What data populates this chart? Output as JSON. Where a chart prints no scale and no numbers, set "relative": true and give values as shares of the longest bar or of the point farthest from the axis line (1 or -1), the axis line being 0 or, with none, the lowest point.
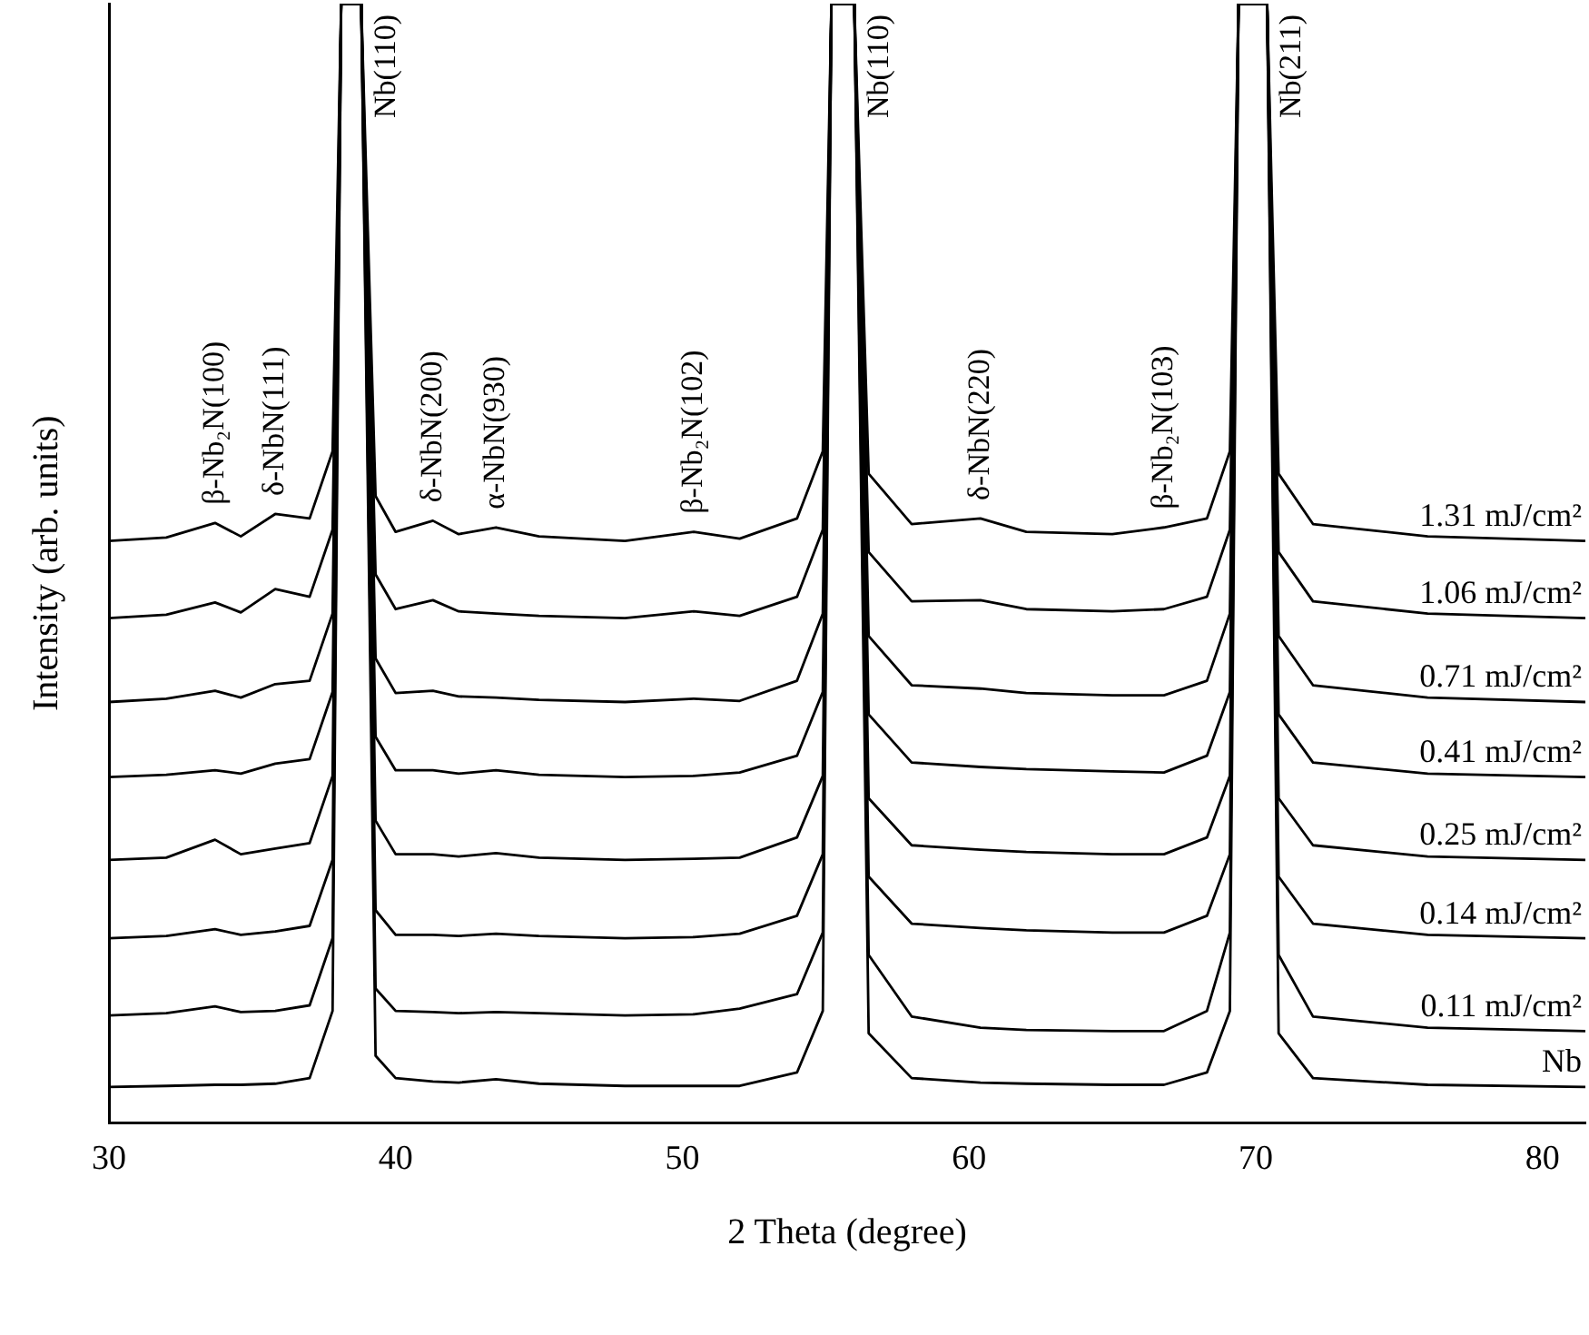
{
  "chart_data": {
    "type": "line",
    "relative": true,
    "xlabel": "2 Theta (degree)",
    "ylabel": "Intensity (arb. units)",
    "xlim": [
      30,
      81.5
    ],
    "xticks": [
      30,
      40,
      50,
      60,
      70,
      80
    ],
    "grid": false,
    "legend": false,
    "marker": "none",
    "line_style": "solid",
    "x": [
      30,
      32,
      33.7,
      34.6,
      35.8,
      37,
      37.8,
      38.1,
      38.8,
      39.3,
      40,
      41.3,
      42.2,
      43.5,
      45,
      48,
      50.4,
      52,
      54,
      54.9,
      55.2,
      56,
      56.5,
      58,
      60.4,
      62,
      65,
      66.8,
      68.3,
      69.1,
      69.4,
      70.4,
      70.8,
      72,
      76,
      81.5
    ],
    "series": [
      {
        "name": "1.31 mJ/cm²",
        "color": "#000000",
        "values": [
          0.52,
          0.523,
          0.536,
          0.524,
          0.544,
          0.54,
          0.6,
          1,
          1,
          0.56,
          0.528,
          0.538,
          0.526,
          0.532,
          0.524,
          0.52,
          0.528,
          0.522,
          0.54,
          0.6,
          1,
          1,
          0.58,
          0.535,
          0.54,
          0.528,
          0.526,
          0.532,
          0.54,
          0.6,
          1,
          1,
          0.58,
          0.535,
          0.524,
          0.52
        ]
      },
      {
        "name": "1.06 mJ/cm²",
        "color": "#000000",
        "values": [
          0.451,
          0.454,
          0.465,
          0.456,
          0.477,
          0.47,
          0.53,
          1,
          1,
          0.49,
          0.459,
          0.467,
          0.457,
          0.455,
          0.453,
          0.451,
          0.457,
          0.453,
          0.47,
          0.53,
          1,
          1,
          0.51,
          0.466,
          0.467,
          0.459,
          0.457,
          0.459,
          0.47,
          0.53,
          1,
          1,
          0.51,
          0.466,
          0.455,
          0.451
        ]
      },
      {
        "name": "0.71 mJ/cm²",
        "color": "#000000",
        "values": [
          0.376,
          0.379,
          0.386,
          0.38,
          0.392,
          0.395,
          0.455,
          1,
          1,
          0.415,
          0.384,
          0.386,
          0.381,
          0.38,
          0.378,
          0.376,
          0.379,
          0.377,
          0.395,
          0.455,
          1,
          1,
          0.435,
          0.391,
          0.388,
          0.384,
          0.382,
          0.382,
          0.395,
          0.455,
          1,
          1,
          0.435,
          0.391,
          0.38,
          0.376
        ]
      },
      {
        "name": "0.41 mJ/cm²",
        "color": "#000000",
        "values": [
          0.309,
          0.311,
          0.315,
          0.312,
          0.321,
          0.325,
          0.385,
          1,
          1,
          0.345,
          0.315,
          0.315,
          0.312,
          0.315,
          0.311,
          0.309,
          0.31,
          0.313,
          0.328,
          0.385,
          1,
          1,
          0.365,
          0.322,
          0.318,
          0.316,
          0.314,
          0.313,
          0.328,
          0.385,
          1,
          1,
          0.365,
          0.322,
          0.312,
          0.309
        ]
      },
      {
        "name": "0.25 mJ/cm²",
        "color": "#000000",
        "values": [
          0.235,
          0.237,
          0.253,
          0.24,
          0.245,
          0.25,
          0.31,
          1,
          1,
          0.27,
          0.24,
          0.24,
          0.238,
          0.241,
          0.237,
          0.235,
          0.236,
          0.237,
          0.255,
          0.31,
          1,
          1,
          0.29,
          0.248,
          0.244,
          0.242,
          0.24,
          0.24,
          0.255,
          0.31,
          1,
          1,
          0.29,
          0.248,
          0.238,
          0.235
        ]
      },
      {
        "name": "0.14 mJ/cm²",
        "color": "#000000",
        "values": [
          0.165,
          0.167,
          0.173,
          0.168,
          0.171,
          0.176,
          0.235,
          1,
          1,
          0.19,
          0.168,
          0.168,
          0.167,
          0.169,
          0.167,
          0.165,
          0.166,
          0.169,
          0.185,
          0.24,
          1,
          1,
          0.22,
          0.178,
          0.174,
          0.172,
          0.17,
          0.17,
          0.185,
          0.24,
          1,
          1,
          0.22,
          0.178,
          0.168,
          0.165
        ]
      },
      {
        "name": "0.11 mJ/cm²",
        "color": "#000000",
        "values": [
          0.096,
          0.098,
          0.104,
          0.099,
          0.1,
          0.105,
          0.165,
          1,
          1,
          0.12,
          0.1,
          0.099,
          0.098,
          0.099,
          0.098,
          0.096,
          0.097,
          0.102,
          0.115,
          0.17,
          1,
          1,
          0.15,
          0.095,
          0.085,
          0.083,
          0.082,
          0.082,
          0.1,
          0.17,
          1,
          1,
          0.15,
          0.095,
          0.085,
          0.082
        ]
      },
      {
        "name": "Nb",
        "color": "#000000",
        "values": [
          0.032,
          0.033,
          0.034,
          0.034,
          0.035,
          0.04,
          0.1,
          1,
          1,
          0.06,
          0.04,
          0.037,
          0.036,
          0.039,
          0.035,
          0.033,
          0.033,
          0.033,
          0.045,
          0.1,
          1,
          1,
          0.08,
          0.04,
          0.036,
          0.035,
          0.034,
          0.034,
          0.045,
          0.1,
          1,
          1,
          0.08,
          0.04,
          0.034,
          0.032
        ]
      }
    ],
    "annotations": [
      {
        "text": "β-Nb₂N(100)",
        "x": 33.7,
        "y": 0.536
      },
      {
        "text": "δ-NbN(111)",
        "x": 35.8,
        "y": 0.544
      },
      {
        "text": "Nb(110)",
        "x": 38.8,
        "y": 1
      },
      {
        "text": "δ-NbN(200)",
        "x": 41.3,
        "y": 0.538
      },
      {
        "text": "α-NbN(930)",
        "x": 43.5,
        "y": 0.532
      },
      {
        "text": "β-Nb₂N(102)",
        "x": 50.4,
        "y": 0.528
      },
      {
        "text": "Nb(110)",
        "x": 56,
        "y": 1
      },
      {
        "text": "δ-NbN(220)",
        "x": 60.4,
        "y": 0.54
      },
      {
        "text": "β-Nb₂N(103)",
        "x": 66.8,
        "y": 0.532
      },
      {
        "text": "Nb(211)",
        "x": 70.4,
        "y": 1
      }
    ]
  }
}
